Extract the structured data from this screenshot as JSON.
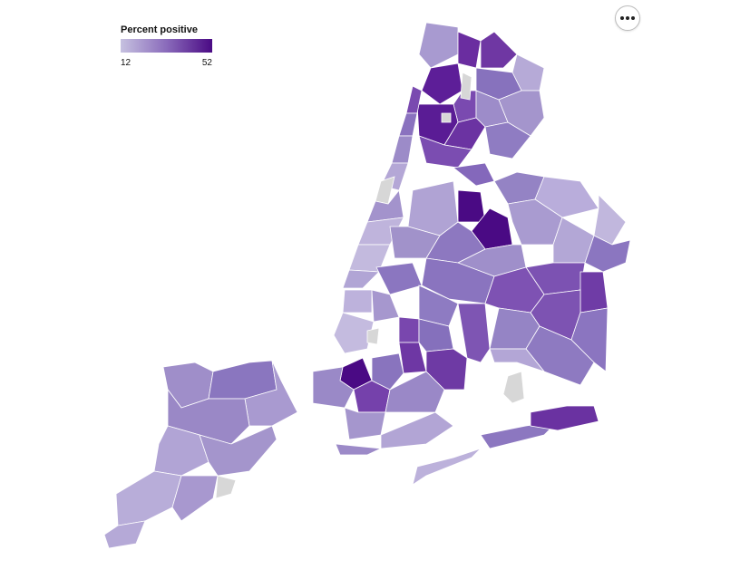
{
  "legend": {
    "title": "Percent positive",
    "min_label": "12",
    "max_label": "52",
    "min_value": 12,
    "max_value": 52,
    "colors": {
      "low": "#c6c1e0",
      "high": "#4a0a84"
    }
  },
  "no_data_color": "#d7d7d7",
  "more_button": {
    "icon": "ellipsis-icon"
  }
}
